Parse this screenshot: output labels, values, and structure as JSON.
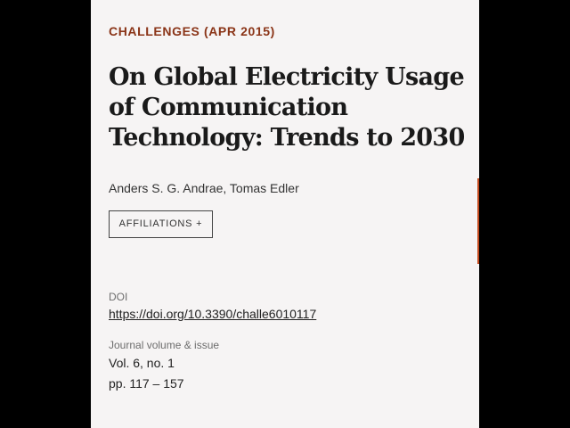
{
  "journal": {
    "name": "CHALLENGES",
    "date": "(APR 2015)"
  },
  "article": {
    "title_lines": [
      "On Global Electricity Usage",
      "of Communication",
      "Technology: Trends to 2030"
    ],
    "authors": "Anders S. G. Andrae, Tomas Edler",
    "affiliations_button": "AFFILIATIONS +"
  },
  "doi": {
    "label": "DOI",
    "link": "https://doi.org/10.3390/challe6010117"
  },
  "issue": {
    "label": "Journal volume & issue",
    "volume": "Vol. 6, no. 1",
    "pages": "pp. 117 – 157"
  },
  "colors": {
    "accent": "#8a3417",
    "background_outer": "#000000",
    "page_background": "#f6f4f4",
    "edge_accent": "#c44a1e"
  }
}
